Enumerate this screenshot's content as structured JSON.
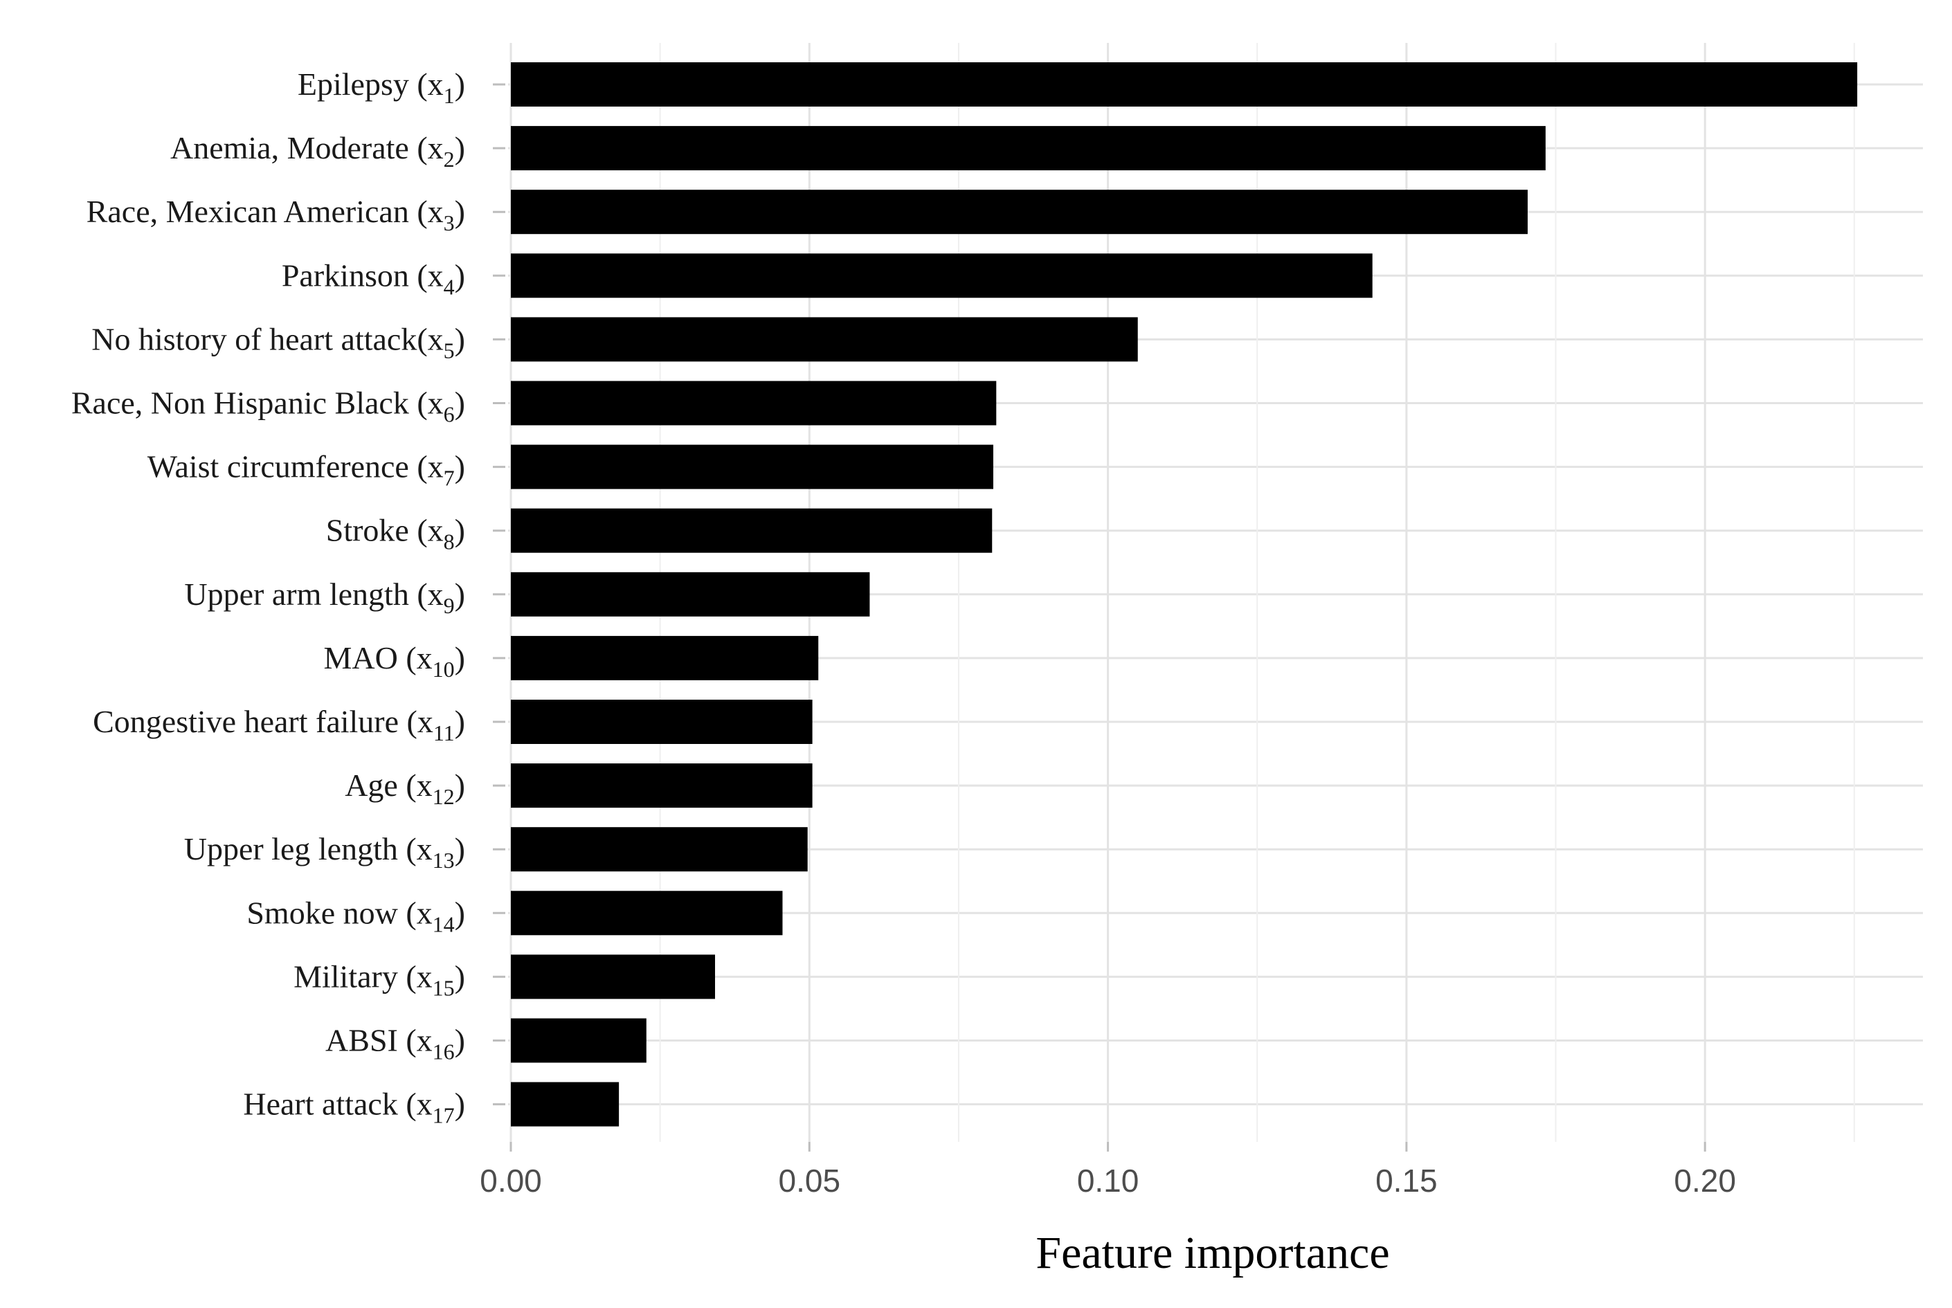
{
  "chart_data": {
    "type": "bar",
    "orientation": "horizontal",
    "categories": [
      {
        "label": "Epilepsy (x",
        "sub": "1",
        "suffix": ")"
      },
      {
        "label": "Anemia, Moderate (x",
        "sub": "2",
        "suffix": ")"
      },
      {
        "label": "Race, Mexican American (x",
        "sub": "3",
        "suffix": ")"
      },
      {
        "label": "Parkinson (x",
        "sub": "4",
        "suffix": ")"
      },
      {
        "label": "No history of heart attack(x",
        "sub": "5",
        "suffix": ")"
      },
      {
        "label": "Race, Non Hispanic Black (x",
        "sub": "6",
        "suffix": ")"
      },
      {
        "label": "Waist circumference (x",
        "sub": "7",
        "suffix": ")"
      },
      {
        "label": "Stroke (x",
        "sub": "8",
        "suffix": ")"
      },
      {
        "label": "Upper arm length (x",
        "sub": "9",
        "suffix": ")"
      },
      {
        "label": "MAO (x",
        "sub": "10",
        "suffix": ")"
      },
      {
        "label": "Congestive heart failure (x",
        "sub": "11",
        "suffix": ")"
      },
      {
        "label": "Age (x",
        "sub": "12",
        "suffix": ")"
      },
      {
        "label": "Upper leg length (x",
        "sub": "13",
        "suffix": ")"
      },
      {
        "label": "Smoke now (x",
        "sub": "14",
        "suffix": ")"
      },
      {
        "label": "Military (x",
        "sub": "15",
        "suffix": ")"
      },
      {
        "label": "ABSI (x",
        "sub": "16",
        "suffix": ")"
      },
      {
        "label": "Heart attack (x",
        "sub": "17",
        "suffix": ")"
      }
    ],
    "values": [
      0.2255,
      0.1733,
      0.1703,
      0.1443,
      0.105,
      0.0813,
      0.0808,
      0.0806,
      0.0601,
      0.0515,
      0.0505,
      0.0505,
      0.0497,
      0.0455,
      0.0342,
      0.0227,
      0.0181
    ],
    "xticks": [
      "0.00",
      "0.05",
      "0.10",
      "0.15",
      "0.20"
    ],
    "xtick_values": [
      0,
      0.05,
      0.1,
      0.15,
      0.2
    ],
    "xlim": [
      0,
      0.2365
    ],
    "xlabel": "Feature importance",
    "bar_color": "#000000",
    "grid": true
  }
}
